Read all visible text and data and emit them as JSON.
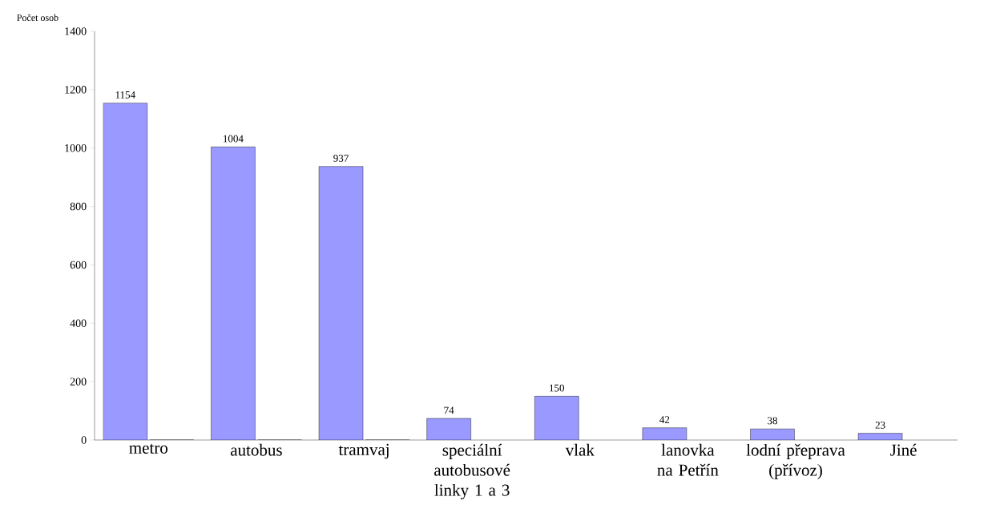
{
  "chart_data": {
    "type": "bar",
    "ylabel": "Počet osob",
    "categories": [
      "metro",
      "autobus",
      "tramvaj",
      "speciální autobusové linky 1 a 3",
      "vlak",
      "lanovka na Petřín",
      "lodní přeprava (přívoz)",
      "Jiné"
    ],
    "series": [
      {
        "color": "#9999ff",
        "values": [
          1154,
          1004,
          937,
          74,
          150,
          42,
          38,
          23
        ],
        "value_labels": [
          "1154",
          "1004",
          "937",
          "74",
          "150",
          "42",
          "38",
          "23"
        ]
      },
      {
        "color": "#9999ff",
        "values": [
          0,
          0,
          0,
          null,
          null,
          null,
          null,
          null
        ]
      }
    ],
    "ylim": [
      0,
      1400
    ],
    "yticks": [
      0,
      200,
      400,
      600,
      800,
      1000,
      1200,
      1400
    ],
    "grid": false
  }
}
